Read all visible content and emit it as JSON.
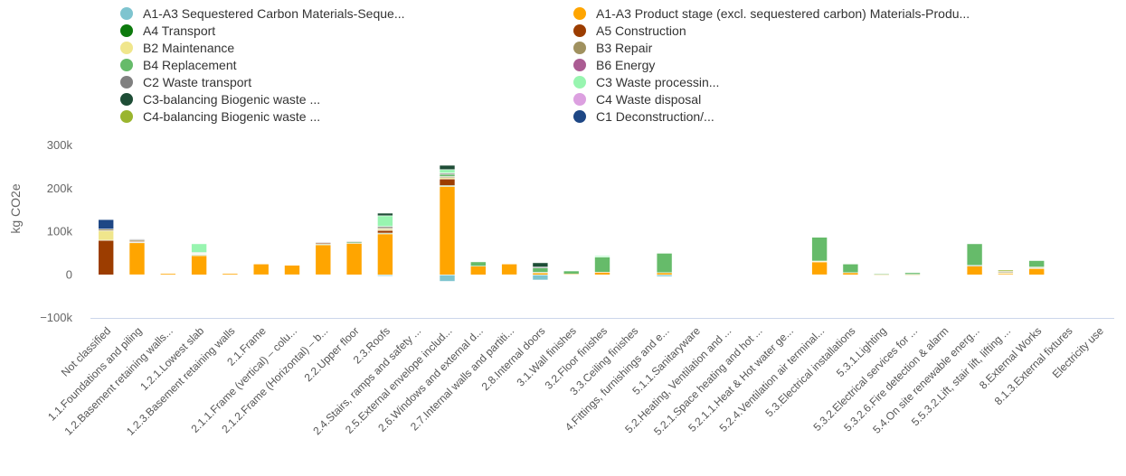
{
  "chart_data": {
    "type": "bar",
    "stacked": true,
    "ylabel": "kg CO2e",
    "ylim": [
      -100000,
      300000
    ],
    "yticks": [
      "300k",
      "200k",
      "100k",
      "0",
      "−100k"
    ],
    "ytick_values": [
      300000,
      200000,
      100000,
      0,
      -100000
    ],
    "grid": false,
    "legend_position": "top",
    "categories": [
      "Not classified",
      "1.1.Foundations and piling",
      "1.2.Basement retaining walls...",
      "1.2.1.Lowest slab",
      "1.2.3.Basement retaining walls",
      "2.1.Frame",
      "2.1.1.Frame (vertical) – colu...",
      "2.1.2.Frame (Horizontal) – b...",
      "2.2.Upper floor",
      "2.3.Roofs",
      "2.4.Stairs, ramps and safety ...",
      "2.5.External envelope includ...",
      "2.6.Windows and external d...",
      "2.7.Internal walls and partiti...",
      "2.8.Internal doors",
      "3.1.Wall finishes",
      "3.2.Floor finishes",
      "3.3.Ceiling finishes",
      "4.Fittings, furnishings and e...",
      "5.1.1.Sanitaryware",
      "5.2.Heating, Ventilation and ...",
      "5.2.1.Space heating and hot ...",
      "5.2.1.1.Heat & Hot water ge...",
      "5.2.4.Ventilation air terminal...",
      "5.3.Electrical installations",
      "5.3.1.Lighting",
      "5.3.2.Electrical services for ...",
      "5.3.2.6.Fire detection & alarm",
      "5.4.On site renewable energ...",
      "5.5.3.2.Lift, stair lift, lifting ...",
      "8.External Works",
      "8.1.3.External fixtures",
      "Electricity use"
    ],
    "series": [
      {
        "name": "A1-A3 Sequestered Carbon Materials-Seque...",
        "color": "#7ec4cf",
        "values": [
          0,
          0,
          0,
          0,
          0,
          0,
          0,
          0,
          0,
          -3000,
          0,
          -15000,
          0,
          0,
          -12000,
          0,
          0,
          0,
          -4000,
          0,
          0,
          0,
          0,
          0,
          0,
          0,
          0,
          0,
          0,
          0,
          0,
          0,
          0
        ]
      },
      {
        "name": "A1-A3 Product stage (excl. sequestered carbon) Materials-Produ...",
        "color": "#ffa500",
        "values": [
          0,
          75000,
          3000,
          45000,
          3000,
          25000,
          22000,
          70000,
          73000,
          95000,
          0,
          205000,
          20000,
          25000,
          5000,
          2000,
          6000,
          0,
          5000,
          0,
          0,
          0,
          0,
          30000,
          5000,
          1000,
          1000,
          0,
          20000,
          3000,
          15000,
          0,
          0
        ]
      },
      {
        "name": "A4 Transport",
        "color": "#0d7a0d",
        "values": [
          0,
          1000,
          0,
          1000,
          0,
          0,
          0,
          1000,
          3000,
          2000,
          0,
          2000,
          0,
          0,
          1000,
          0,
          0,
          0,
          0,
          0,
          0,
          0,
          0,
          0,
          0,
          0,
          0,
          0,
          0,
          0,
          1000,
          0,
          0
        ]
      },
      {
        "name": "A5 Construction",
        "color": "#9c3d00",
        "values": [
          80000,
          2000,
          0,
          2000,
          0,
          0,
          0,
          3000,
          1000,
          6000,
          0,
          15000,
          0,
          0,
          0,
          0,
          0,
          0,
          0,
          0,
          0,
          0,
          0,
          0,
          0,
          0,
          0,
          0,
          0,
          0,
          0,
          0,
          0
        ]
      },
      {
        "name": "B2 Maintenance",
        "color": "#f0e68c",
        "values": [
          22000,
          0,
          0,
          1000,
          0,
          0,
          0,
          1000,
          0,
          3000,
          0,
          3000,
          0,
          0,
          0,
          0,
          0,
          0,
          0,
          0,
          0,
          0,
          0,
          2000,
          0,
          0,
          0,
          0,
          0,
          2000,
          1000,
          0,
          0
        ]
      },
      {
        "name": "B3 Repair",
        "color": "#a0915f",
        "values": [
          4000,
          3000,
          0,
          2000,
          0,
          0,
          0,
          0,
          0,
          3000,
          0,
          3000,
          0,
          0,
          0,
          0,
          0,
          0,
          0,
          0,
          0,
          0,
          0,
          0,
          0,
          0,
          0,
          0,
          2000,
          3000,
          1000,
          0,
          0
        ]
      },
      {
        "name": "B4 Replacement",
        "color": "#66bb6a",
        "values": [
          0,
          0,
          0,
          0,
          0,
          0,
          0,
          0,
          0,
          0,
          0,
          5000,
          10000,
          0,
          10000,
          7000,
          35000,
          0,
          45000,
          0,
          0,
          0,
          0,
          55000,
          20000,
          2000,
          4000,
          0,
          50000,
          0,
          15000,
          0,
          0
        ]
      },
      {
        "name": "B6 Energy",
        "color": "#ab5c93",
        "values": [
          0,
          0,
          0,
          0,
          0,
          0,
          0,
          0,
          0,
          0,
          0,
          0,
          0,
          0,
          0,
          0,
          0,
          0,
          0,
          0,
          0,
          0,
          0,
          0,
          0,
          0,
          0,
          0,
          0,
          0,
          0,
          0,
          0
        ]
      },
      {
        "name": "C2 Waste transport",
        "color": "#808080",
        "values": [
          0,
          2000,
          0,
          1000,
          0,
          0,
          0,
          1000,
          1000,
          3000,
          0,
          3000,
          0,
          0,
          2000,
          0,
          0,
          0,
          0,
          0,
          0,
          0,
          0,
          0,
          0,
          0,
          0,
          0,
          0,
          0,
          0,
          0,
          0
        ]
      },
      {
        "name": "C3 Waste processin...",
        "color": "#98f5b0",
        "values": [
          0,
          0,
          0,
          20000,
          0,
          0,
          0,
          0,
          0,
          25000,
          0,
          8000,
          0,
          0,
          0,
          0,
          3000,
          0,
          0,
          0,
          0,
          0,
          0,
          0,
          0,
          0,
          0,
          0,
          0,
          0,
          0,
          0,
          0
        ]
      },
      {
        "name": "C3-balancing Biogenic waste ...",
        "color": "#1e4d36",
        "values": [
          0,
          0,
          0,
          0,
          0,
          0,
          0,
          0,
          0,
          6000,
          0,
          10000,
          0,
          0,
          10000,
          0,
          0,
          0,
          0,
          0,
          0,
          0,
          0,
          0,
          0,
          0,
          0,
          0,
          0,
          0,
          0,
          0,
          0
        ]
      },
      {
        "name": "C4 Waste disposal",
        "color": "#dca0e0",
        "values": [
          0,
          0,
          0,
          0,
          0,
          0,
          0,
          0,
          0,
          0,
          0,
          0,
          0,
          0,
          0,
          0,
          0,
          0,
          0,
          0,
          0,
          0,
          0,
          0,
          0,
          0,
          0,
          0,
          0,
          0,
          0,
          0,
          0
        ]
      },
      {
        "name": "C4-balancing Biogenic waste ...",
        "color": "#9ab52e",
        "values": [
          0,
          0,
          0,
          0,
          0,
          0,
          0,
          0,
          0,
          0,
          0,
          0,
          0,
          0,
          0,
          0,
          0,
          0,
          0,
          0,
          0,
          0,
          0,
          0,
          0,
          0,
          0,
          0,
          0,
          3000,
          0,
          0,
          0
        ]
      },
      {
        "name": "C1 Deconstruction/...",
        "color": "#1e4785",
        "values": [
          22000,
          0,
          0,
          0,
          0,
          0,
          0,
          0,
          0,
          0,
          0,
          0,
          0,
          0,
          0,
          0,
          0,
          0,
          0,
          0,
          0,
          0,
          0,
          0,
          0,
          0,
          0,
          0,
          0,
          0,
          0,
          0,
          0
        ]
      }
    ]
  }
}
